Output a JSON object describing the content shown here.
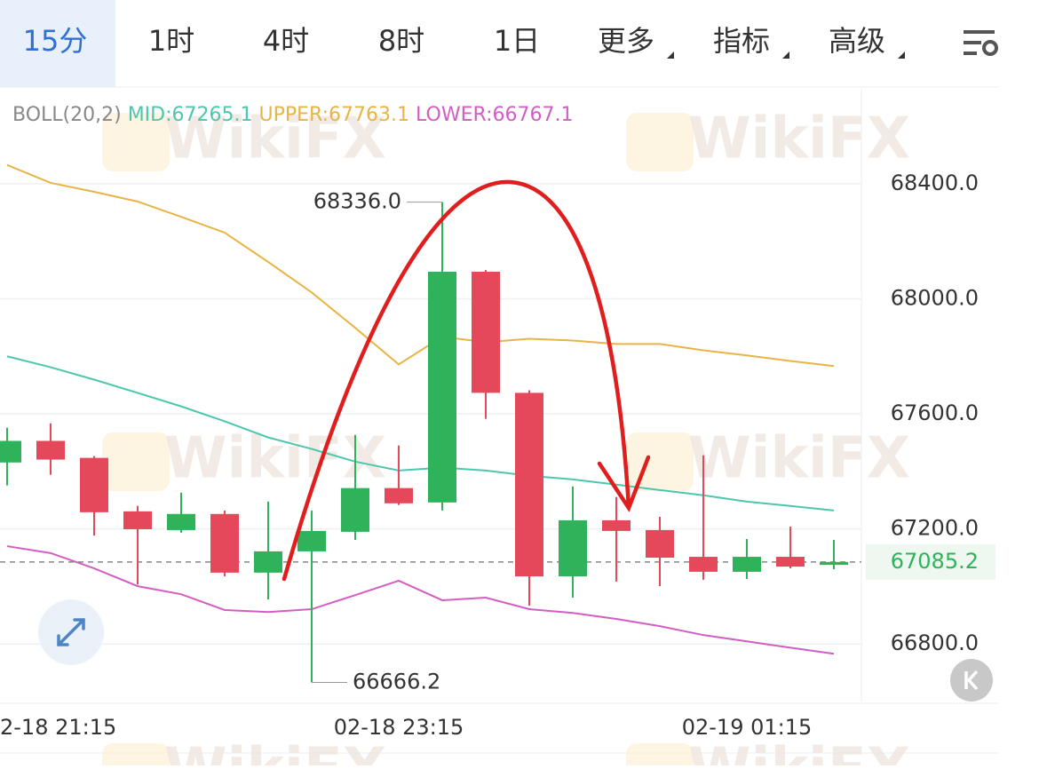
{
  "tabs": [
    "15分",
    "1时",
    "4时",
    "8时",
    "1日",
    "更多",
    "指标",
    "高级"
  ],
  "watermark": "WikiFX",
  "chart_data": {
    "type": "candlestick",
    "indicator": "BOLL(20,2)",
    "categories": [
      null,
      "2-18 21:15",
      null,
      null,
      null,
      null,
      null,
      null,
      null,
      "02-18 23:15",
      null,
      null,
      null,
      null,
      null,
      null,
      null,
      "02-19 01:15",
      null,
      null
    ],
    "open": [
      67431,
      67506,
      67447,
      67261,
      67196,
      67252,
      67048,
      67122,
      67190,
      67342,
      67292,
      68094,
      67673,
      67035,
      67230,
      67196,
      67103,
      67051,
      67103,
      67075
    ],
    "high": [
      67552,
      67567,
      67453,
      67280,
      67326,
      67264,
      67295,
      67264,
      67527,
      67490,
      68336,
      68100,
      67682,
      67348,
      67311,
      67242,
      67456,
      67165,
      67208,
      67162
    ],
    "low": [
      67351,
      67388,
      67177,
      67007,
      67187,
      67035,
      66955,
      66666.2,
      67162,
      67283,
      67264,
      67583,
      66933,
      66961,
      67017,
      67001,
      67023,
      67026,
      67063,
      67060
    ],
    "close": [
      67506,
      67441,
      67258,
      67199,
      67252,
      67048,
      67122,
      67193,
      67342,
      67289,
      68094,
      67673,
      67035,
      67230,
      67193,
      67100,
      67051,
      67103,
      67069,
      67085.2
    ],
    "up_color": "#2fb35a",
    "down_color": "#e4485a",
    "lines": [
      {
        "name": "MID:67265.1",
        "color": "#4cc7ae",
        "values": [
          67800,
          67762,
          67719,
          67673,
          67626,
          67574,
          67518,
          67478,
          67434,
          67403,
          67413,
          67403,
          67385,
          67372,
          67354,
          67335,
          67317,
          67295,
          67280,
          67264
        ]
      },
      {
        "name": "UPPER:67763.1",
        "color": "#e8b445",
        "values": [
          68465,
          68403,
          68372,
          68338,
          68285,
          68230,
          68128,
          68022,
          67899,
          67772,
          67868,
          67849,
          67861,
          67855,
          67843,
          67843,
          67821,
          67803,
          67784,
          67766
        ]
      },
      {
        "name": "LOWER:66767.1",
        "color": "#d35ec3",
        "values": [
          67140,
          67116,
          67063,
          67001,
          66973,
          66918,
          66911,
          66921,
          66970,
          67020,
          66952,
          66961,
          66921,
          66908,
          66887,
          66862,
          66831,
          66809,
          66787,
          66766
        ]
      }
    ],
    "max_annotation": {
      "value": 68336,
      "label": "68336.0"
    },
    "min_annotation": {
      "value": 66666.2,
      "label": "66666.2"
    },
    "last": {
      "value": 67085.2,
      "label": "67085.2"
    },
    "ylim": [
      66600,
      68730
    ],
    "yticks": [
      {
        "value": 66800,
        "label": "66800.0"
      },
      {
        "value": 67200,
        "label": "67200.0"
      },
      {
        "value": 67600,
        "label": "67600.0"
      },
      {
        "value": 68000,
        "label": "68000.0"
      },
      {
        "value": 68400,
        "label": "68400.0"
      }
    ],
    "grid": true
  }
}
